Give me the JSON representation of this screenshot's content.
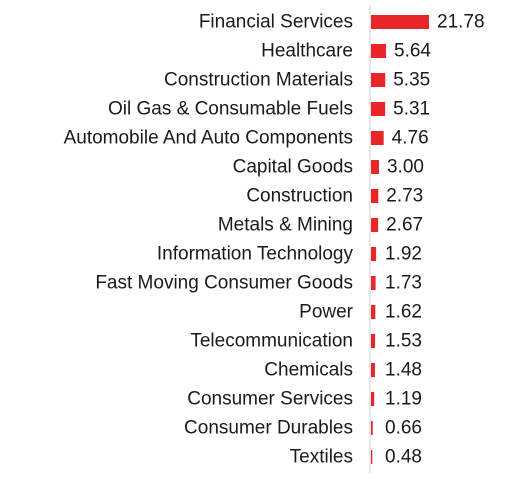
{
  "chart_data": {
    "type": "bar",
    "orientation": "horizontal",
    "categories": [
      "Financial Services",
      "Healthcare",
      "Construction Materials",
      "Oil Gas & Consumable Fuels",
      "Automobile And Auto Components",
      "Capital Goods",
      "Construction",
      "Metals & Mining",
      "Information Technology",
      "Fast Moving Consumer Goods",
      "Power",
      "Telecommunication",
      "Chemicals",
      "Consumer Services",
      "Consumer Durables",
      "Textiles"
    ],
    "values": [
      21.78,
      5.64,
      5.35,
      5.31,
      4.76,
      3.0,
      2.73,
      2.67,
      1.92,
      1.73,
      1.62,
      1.53,
      1.48,
      1.19,
      0.66,
      0.48
    ],
    "value_labels": [
      "21.78",
      "5.64",
      "5.35",
      "5.31",
      "4.76",
      "3.00",
      "2.73",
      "2.67",
      "1.92",
      "1.73",
      "1.62",
      "1.53",
      "1.48",
      "1.19",
      "0.66",
      "0.48"
    ],
    "bar_color": "#e8262a",
    "axis_color": "#d0d0d0",
    "title": "",
    "xlabel": "",
    "ylabel": "",
    "grid": false,
    "legend": "none"
  }
}
